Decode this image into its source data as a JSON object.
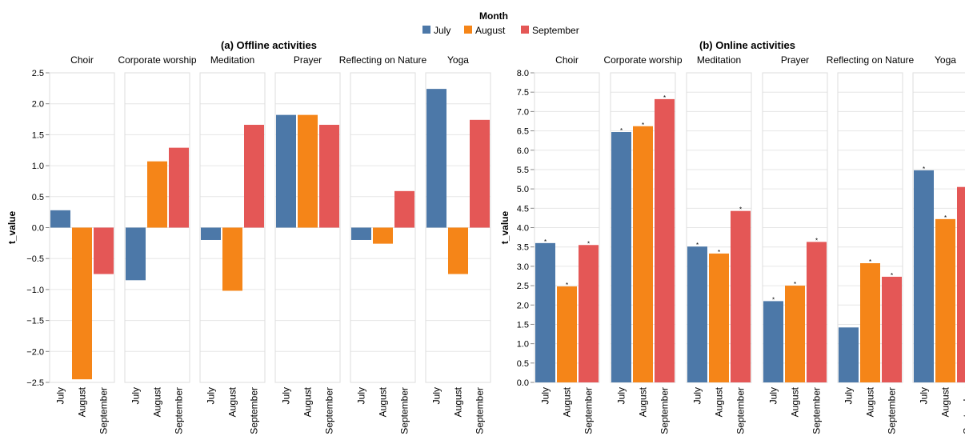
{
  "legend": {
    "title": "Month",
    "items": [
      {
        "label": "July",
        "color": "#4c78a8"
      },
      {
        "label": "August",
        "color": "#f58518"
      },
      {
        "label": "September",
        "color": "#e45756"
      }
    ]
  },
  "chart_data": [
    {
      "type": "bar",
      "title": "(a) Offline activities",
      "ylabel": "t_value",
      "ylim": [
        -2.5,
        2.5
      ],
      "yticks": [
        "−2.5",
        "−2.0",
        "−1.5",
        "−1.0",
        "−0.5",
        "0.0",
        "0.5",
        "1.0",
        "1.5",
        "2.0",
        "2.5"
      ],
      "ytick_values": [
        -2.5,
        -2.0,
        -1.5,
        -1.0,
        -0.5,
        0.0,
        0.5,
        1.0,
        1.5,
        2.0,
        2.5
      ],
      "categories": [
        "July",
        "August",
        "September"
      ],
      "grid": true,
      "facets": [
        {
          "name": "Choir",
          "values": [
            0.28,
            -2.45,
            -0.75
          ],
          "marks": [
            false,
            false,
            false
          ]
        },
        {
          "name": "Corporate worship",
          "values": [
            -0.85,
            1.07,
            1.29
          ],
          "marks": [
            false,
            false,
            false
          ]
        },
        {
          "name": "Meditation",
          "values": [
            -0.2,
            -1.02,
            1.66
          ],
          "marks": [
            false,
            false,
            false
          ]
        },
        {
          "name": "Prayer",
          "values": [
            1.82,
            1.82,
            1.66
          ],
          "marks": [
            false,
            false,
            false
          ]
        },
        {
          "name": "Reflecting on Nature",
          "values": [
            -0.2,
            -0.26,
            0.59
          ],
          "marks": [
            false,
            false,
            false
          ]
        },
        {
          "name": "Yoga",
          "values": [
            2.24,
            -0.75,
            1.74
          ],
          "marks": [
            false,
            false,
            false
          ]
        }
      ]
    },
    {
      "type": "bar",
      "title": "(b) Online activities",
      "ylabel": "t_value",
      "ylim": [
        0,
        8
      ],
      "yticks": [
        "0.0",
        "0.5",
        "1.0",
        "1.5",
        "2.0",
        "2.5",
        "3.0",
        "3.5",
        "4.0",
        "4.5",
        "5.0",
        "5.5",
        "6.0",
        "6.5",
        "7.0",
        "7.5",
        "8.0"
      ],
      "ytick_values": [
        0.0,
        0.5,
        1.0,
        1.5,
        2.0,
        2.5,
        3.0,
        3.5,
        4.0,
        4.5,
        5.0,
        5.5,
        6.0,
        6.5,
        7.0,
        7.5,
        8.0
      ],
      "categories": [
        "July",
        "August",
        "September"
      ],
      "grid": true,
      "significance_mark": "*",
      "facets": [
        {
          "name": "Choir",
          "values": [
            3.6,
            2.48,
            3.55
          ],
          "marks": [
            true,
            true,
            true
          ]
        },
        {
          "name": "Corporate worship",
          "values": [
            6.47,
            6.62,
            7.32
          ],
          "marks": [
            true,
            true,
            true
          ]
        },
        {
          "name": "Meditation",
          "values": [
            3.51,
            3.33,
            4.43
          ],
          "marks": [
            true,
            true,
            true
          ]
        },
        {
          "name": "Prayer",
          "values": [
            2.1,
            2.5,
            3.63
          ],
          "marks": [
            true,
            true,
            true
          ]
        },
        {
          "name": "Reflecting on Nature",
          "values": [
            1.42,
            3.08,
            2.73
          ],
          "marks": [
            false,
            true,
            true
          ]
        },
        {
          "name": "Yoga",
          "values": [
            5.48,
            4.22,
            5.05
          ],
          "marks": [
            true,
            true,
            true
          ]
        }
      ]
    }
  ]
}
